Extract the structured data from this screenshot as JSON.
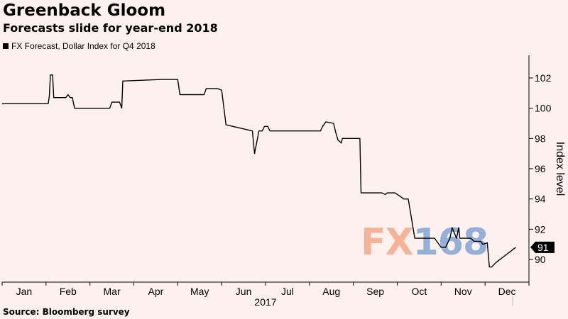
{
  "title": "Greenback Gloom",
  "subtitle": "Forecasts slide for year-end 2018",
  "legend_label": "FX Forecast, Dollar Index for Q4 2018",
  "source": "Source: Bloomberg survey",
  "watermark": {
    "part1": "FX",
    "part2": "168"
  },
  "colors": {
    "background": "#fdf1ef",
    "line": "#000000"
  },
  "chart_data": {
    "type": "line",
    "title": "Greenback Gloom",
    "subtitle": "Forecasts slide for year-end 2018",
    "xlabel": "2017",
    "ylabel": "Index level",
    "ylim": [
      88.5,
      103.5
    ],
    "yticks": [
      90,
      92,
      94,
      96,
      98,
      100,
      102
    ],
    "month_labels": [
      "Jan",
      "Feb",
      "Mar",
      "Apr",
      "May",
      "Jun",
      "Jul",
      "Aug",
      "Sep",
      "Oct",
      "Nov",
      "Dec"
    ],
    "last_value_label": "91",
    "legend": "top-left",
    "grid": false,
    "series": [
      {
        "name": "FX Forecast, Dollar Index for Q4 2018",
        "x": [
          0,
          2.1,
          2.15,
          2.2,
          2.3,
          2.35,
          2.5,
          2.9,
          3.0,
          3.1,
          3.2,
          3.3,
          4.9,
          5.0,
          5.1,
          5.35,
          5.45,
          5.5,
          7.3,
          7.35,
          8.0,
          8.1,
          9.2,
          9.3,
          9.35,
          9.4,
          9.45,
          9.5,
          9.8,
          10.0,
          10.2,
          11.4,
          11.5,
          11.7,
          11.75,
          11.85,
          11.95,
          12.1,
          12.2,
          13.1,
          13.2,
          14.5,
          14.6,
          14.75,
          15.1,
          15.2,
          15.3,
          15.45,
          15.5,
          15.7,
          15.75,
          16.3,
          16.35,
          16.85,
          16.9,
          17.3,
          17.45,
          17.55,
          17.65,
          17.75,
          17.9,
          18.3,
          18.35,
          18.45,
          18.5,
          18.8,
          19.1,
          19.2,
          19.3,
          19.4,
          19.5,
          19.6,
          19.7,
          20.0,
          20.1,
          20.2,
          20.4,
          20.5,
          20.7,
          20.8,
          20.85,
          21.3,
          21.35,
          21.5,
          21.6,
          21.7,
          21.8,
          21.9,
          22.1,
          22.2,
          22.3,
          22.5,
          23.4
        ],
        "values": [
          100.3,
          100.3,
          100.8,
          102.2,
          102.2,
          100.7,
          100.7,
          100.7,
          100.9,
          100.7,
          100.7,
          100.0,
          100.0,
          100.4,
          100.4,
          100.4,
          100.0,
          101.8,
          101.9,
          101.9,
          101.9,
          100.9,
          100.9,
          101.3,
          101.3,
          101.3,
          101.3,
          101.3,
          101.3,
          101.2,
          98.9,
          98.5,
          97.0,
          98.5,
          98.5,
          98.5,
          98.8,
          98.8,
          98.5,
          98.5,
          98.5,
          98.5,
          98.8,
          99.1,
          99.0,
          98.4,
          97.9,
          97.7,
          98.0,
          98.0,
          98.0,
          98.0,
          94.4,
          94.4,
          94.4,
          94.4,
          94.3,
          94.4,
          94.4,
          94.4,
          94.4,
          94.0,
          94.0,
          94.0,
          94.0,
          91.4,
          91.4,
          91.4,
          91.4,
          91.4,
          91.4,
          91.4,
          91.4,
          90.8,
          90.8,
          90.8,
          91.4,
          92.1,
          91.4,
          92.1,
          91.4,
          91.4,
          91.4,
          91.2,
          91.2,
          91.2,
          91.2,
          91.0,
          91.1,
          89.5,
          89.5,
          89.8,
          90.8
        ]
      }
    ]
  }
}
